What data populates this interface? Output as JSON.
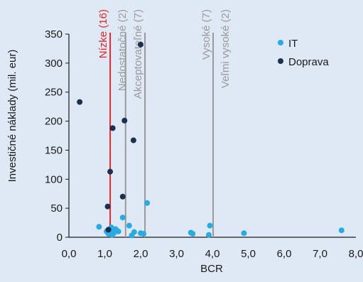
{
  "chart_data": {
    "type": "scatter",
    "xlabel": "BCR",
    "ylabel": "Investičné náklady (mil. eur)",
    "xlim": [
      0,
      8
    ],
    "ylim": [
      0,
      350
    ],
    "x_ticks": [
      "0,0",
      "1,0",
      "2,0",
      "3,0",
      "4,0",
      "5,0",
      "6,0",
      "7,0",
      "8,0"
    ],
    "x_tick_values": [
      0,
      1,
      2,
      3,
      4,
      5,
      6,
      7,
      8
    ],
    "y_ticks": [
      "0",
      "50",
      "100",
      "150",
      "200",
      "250",
      "300",
      "350"
    ],
    "y_tick_values": [
      0,
      50,
      100,
      150,
      200,
      250,
      300,
      350
    ],
    "grid": false,
    "legend_position": "top-right",
    "series": [
      {
        "name": "IT",
        "color": "#29abe2",
        "points": [
          [
            0.84,
            18
          ],
          [
            1.05,
            10
          ],
          [
            1.1,
            6
          ],
          [
            1.15,
            12
          ],
          [
            1.18,
            17
          ],
          [
            1.2,
            4
          ],
          [
            1.25,
            7
          ],
          [
            1.3,
            14
          ],
          [
            1.33,
            12
          ],
          [
            1.38,
            10
          ],
          [
            1.5,
            34
          ],
          [
            1.68,
            20
          ],
          [
            1.75,
            3
          ],
          [
            1.82,
            9
          ],
          [
            2.0,
            7
          ],
          [
            2.08,
            6
          ],
          [
            2.18,
            59
          ],
          [
            3.4,
            8
          ],
          [
            3.45,
            6
          ],
          [
            3.9,
            4
          ],
          [
            3.93,
            20
          ],
          [
            4.88,
            7
          ],
          [
            7.6,
            12
          ]
        ]
      },
      {
        "name": "Doprava",
        "color": "#1b2f4e",
        "points": [
          [
            0.3,
            233
          ],
          [
            1.08,
            53
          ],
          [
            1.1,
            13
          ],
          [
            1.15,
            113
          ],
          [
            1.22,
            188
          ],
          [
            1.5,
            70
          ],
          [
            1.55,
            201
          ],
          [
            1.8,
            167
          ],
          [
            2.0,
            332
          ]
        ]
      }
    ],
    "thresholds": [
      {
        "x": 1.15,
        "label": "Nízke (16)",
        "color": "#e3262c"
      },
      {
        "x": 1.58,
        "label": "Nedostatočné (2)",
        "color": "#9a9a9a"
      },
      {
        "x": 2.12,
        "label": "Akceptovateľné (7)",
        "color": "#9a9a9a"
      },
      {
        "x": 4.02,
        "label": "Vysoké (7)",
        "color": "#9a9a9a"
      },
      {
        "x": 0,
        "label": "Veľmi vysoké (2)",
        "color": "#9a9a9a"
      }
    ]
  }
}
